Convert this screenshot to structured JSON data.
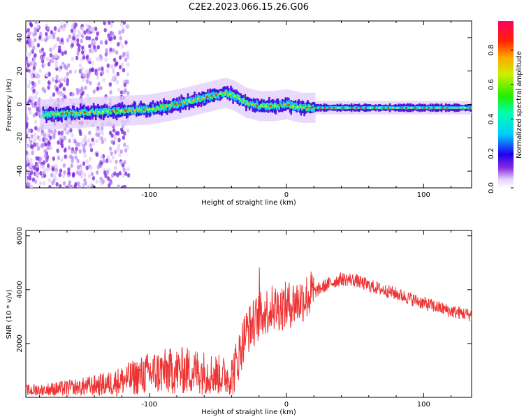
{
  "title": "C2E2.2023.066.15.26.G06",
  "chart_data": [
    {
      "type": "heatmap",
      "xlabel": "Height of straight line (km)",
      "ylabel": "Frequency (Hz)",
      "xlim": [
        -190,
        135
      ],
      "ylim": [
        -50,
        50
      ],
      "xticks": [
        -100,
        0,
        100
      ],
      "yticks": [
        -40,
        -20,
        0,
        20,
        40
      ],
      "colorbar": {
        "label": "Normalized spectral amplitude",
        "range": [
          0,
          0.97
        ],
        "ticks": [
          0.0,
          0.2,
          0.4,
          0.6,
          0.8
        ]
      },
      "ridge": {
        "description_x": [
          -175,
          -150,
          -125,
          -100,
          -80,
          -60,
          -45,
          -38,
          -30,
          -20,
          -10,
          0,
          10,
          20,
          60,
          100,
          135
        ],
        "frequency": [
          -6,
          -5,
          -4,
          -3,
          0,
          4,
          7,
          5,
          1,
          -1,
          -1,
          0,
          -2,
          -2,
          -2,
          -2,
          -2
        ]
      }
    },
    {
      "type": "line",
      "xlabel": "Height of straight line (km)",
      "ylabel": "SNR (10 * v/v)",
      "xlim": [
        -190,
        135
      ],
      "ylim": [
        0,
        6200
      ],
      "xticks": [
        -100,
        0,
        100
      ],
      "yticks": [
        2000,
        4000,
        6000
      ],
      "series": [
        {
          "color": "#ee3333",
          "x": [
            -190,
            -170,
            -150,
            -130,
            -110,
            -100,
            -90,
            -70,
            -50,
            -40,
            -35,
            -30,
            -25,
            -20,
            -15,
            -10,
            0,
            10,
            20,
            30,
            40,
            50,
            60,
            80,
            100,
            120,
            135
          ],
          "y": [
            250,
            300,
            380,
            500,
            750,
            900,
            950,
            1000,
            850,
            750,
            1500,
            2400,
            2700,
            3000,
            3200,
            3300,
            3400,
            3600,
            3900,
            4200,
            4400,
            4350,
            4150,
            3850,
            3500,
            3200,
            3050
          ]
        }
      ]
    }
  ]
}
